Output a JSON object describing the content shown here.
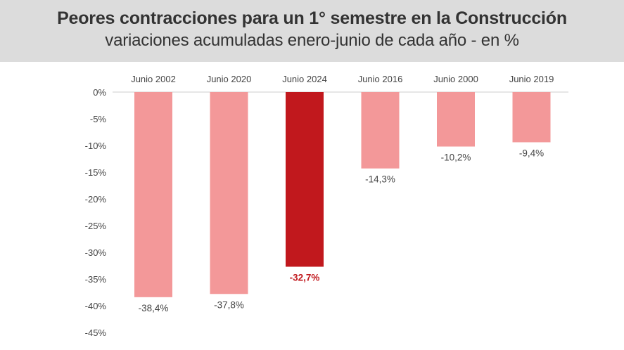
{
  "header": {
    "title": "Peores contracciones para un 1° semestre en la Construcción",
    "subtitle": "variaciones acumuladas enero-junio de cada año - en %"
  },
  "colors": {
    "bar": "#f39899",
    "highlight": "#c1181d",
    "axis": "#cccccc",
    "header_bg": "#dcdcdc"
  },
  "chart_data": {
    "type": "bar",
    "title": "Peores contracciones para un 1° semestre en la Construcción",
    "subtitle": "variaciones acumuladas enero-junio de cada año - en %",
    "categories": [
      "Junio 2002",
      "Junio 2020",
      "Junio 2024",
      "Junio 2016",
      "Junio 2000",
      "Junio 2019"
    ],
    "values": [
      -38.4,
      -37.8,
      -32.7,
      -14.3,
      -10.2,
      -9.4
    ],
    "value_labels": [
      "-38,4%",
      "-37,8%",
      "-32,7%",
      "-14,3%",
      "-10,2%",
      "-9,4%"
    ],
    "highlight_index": 2,
    "ylim": [
      -45,
      0
    ],
    "y_ticks": [
      0,
      -5,
      -10,
      -15,
      -20,
      -25,
      -30,
      -35,
      -40,
      -45
    ],
    "y_tick_labels": [
      "0%",
      "-5%",
      "-10%",
      "-15%",
      "-20%",
      "-25%",
      "-30%",
      "-35%",
      "-40%",
      "-45%"
    ],
    "xlabel": "",
    "ylabel": "",
    "grid": false,
    "legend": "none"
  }
}
